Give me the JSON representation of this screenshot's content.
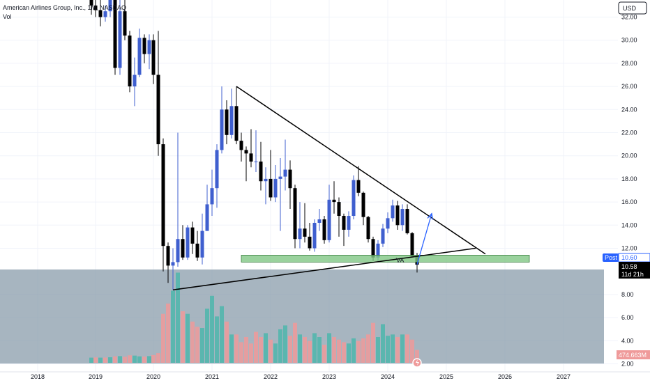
{
  "legend": {
    "symbol_title": "American Airlines Group, Inc., 1M, NASDAQ",
    "volume_label": "Vol"
  },
  "currency_label": "USD",
  "post_label": "Post",
  "post_price": "10.60",
  "last_price": "10.58",
  "countdown": "11d 21h",
  "volume_value": "474.663M",
  "colors": {
    "bull_candle": "#3f5fcf",
    "bear_candle": "#000000",
    "vol_up": "#4db6ac",
    "vol_down": "#ef9a9a",
    "support_zone": "#81c784",
    "volume_panel": "#8a9cab",
    "projection_arrow": "#2962ff"
  },
  "chart_data": {
    "type": "candlestick",
    "interval": "1M",
    "y_axis": {
      "min": 2,
      "max": 33,
      "ticks": [
        "32.00",
        "30.00",
        "28.00",
        "26.00",
        "24.00",
        "22.00",
        "20.00",
        "18.00",
        "16.00",
        "14.00",
        "12.00",
        "8.00",
        "6.00",
        "4.00",
        "2.00"
      ]
    },
    "x_axis": {
      "ticks": [
        "2018",
        "2019",
        "2020",
        "2021",
        "2022",
        "2023",
        "2024",
        "2025",
        "2026",
        "2027"
      ]
    },
    "annotations": {
      "descending_trendline": {
        "from": [
          "2021-06",
          26.0
        ],
        "to": [
          "2025-09",
          11.5
        ]
      },
      "ascending_trendline": {
        "from": [
          "2020-05",
          8.4
        ],
        "to": [
          "2025-07",
          12.0
        ]
      },
      "support_zone": {
        "from": "2021-07",
        "to": "2026-06",
        "low": 10.8,
        "high": 11.4
      },
      "projection_arrow": {
        "from": [
          "2024-07",
          10.6
        ],
        "to": [
          "2024-10",
          15.0
        ]
      },
      "label": "VA"
    },
    "candles": [
      [
        "2018-12",
        35,
        35.5,
        32.2,
        33.0
      ],
      [
        "2019-01",
        33.0,
        34.8,
        32.0,
        32.6
      ],
      [
        "2019-02",
        32.6,
        34.6,
        31.2,
        32.0
      ],
      [
        "2019-03",
        32.0,
        33.0,
        31.6,
        32.5
      ],
      [
        "2019-04",
        32.5,
        34.8,
        32.0,
        34.0
      ],
      [
        "2019-05",
        34.0,
        34.0,
        27.0,
        27.6
      ],
      [
        "2019-06",
        27.6,
        33.5,
        27.0,
        32.5
      ],
      [
        "2019-07",
        32.5,
        33.5,
        30.0,
        30.4
      ],
      [
        "2019-08",
        30.4,
        30.8,
        25.5,
        26.0
      ],
      [
        "2019-09",
        26.0,
        28.5,
        24.3,
        27.0
      ],
      [
        "2019-10",
        27.0,
        31.0,
        26.8,
        30.2
      ],
      [
        "2019-11",
        30.2,
        30.5,
        28.0,
        28.8
      ],
      [
        "2019-12",
        28.8,
        30.5,
        27.5,
        30.0
      ],
      [
        "2020-01",
        30.0,
        30.5,
        26.2,
        27.0
      ],
      [
        "2020-02",
        27.0,
        30.8,
        20.0,
        21.0
      ],
      [
        "2020-03",
        21.0,
        21.5,
        10.0,
        12.2
      ],
      [
        "2020-04",
        12.2,
        12.5,
        9.0,
        10.5
      ],
      [
        "2020-05",
        10.5,
        12.0,
        8.4,
        10.8
      ],
      [
        "2020-06",
        10.8,
        22.0,
        10.4,
        12.8
      ],
      [
        "2020-07",
        12.8,
        14.0,
        11.0,
        11.2
      ],
      [
        "2020-08",
        11.2,
        14.0,
        11.0,
        13.8
      ],
      [
        "2020-09",
        13.8,
        14.3,
        11.5,
        12.4
      ],
      [
        "2020-10",
        12.4,
        13.5,
        10.9,
        11.2
      ],
      [
        "2020-11",
        11.2,
        15.0,
        10.6,
        13.5
      ],
      [
        "2020-12",
        13.5,
        17.5,
        13.5,
        15.8
      ],
      [
        "2021-01",
        15.8,
        18.8,
        14.8,
        17.2
      ],
      [
        "2021-02",
        17.2,
        21.0,
        15.5,
        20.5
      ],
      [
        "2021-03",
        20.5,
        26.0,
        20.2,
        24.0
      ],
      [
        "2021-04",
        24.0,
        24.8,
        21.0,
        21.8
      ],
      [
        "2021-05",
        21.8,
        25.8,
        21.5,
        24.3
      ],
      [
        "2021-06",
        24.3,
        26.0,
        21.0,
        21.3
      ],
      [
        "2021-07",
        21.3,
        22.0,
        19.5,
        20.5
      ],
      [
        "2021-08",
        20.5,
        20.8,
        17.8,
        20.2
      ],
      [
        "2021-09",
        20.2,
        22.3,
        19.0,
        19.5
      ],
      [
        "2021-10",
        19.5,
        22.2,
        18.6,
        19.5
      ],
      [
        "2021-11",
        19.5,
        21.2,
        17.0,
        17.8
      ],
      [
        "2021-12",
        17.8,
        19.0,
        15.8,
        18.0
      ],
      [
        "2022-01",
        18.0,
        20.5,
        16.1,
        16.4
      ],
      [
        "2022-02",
        16.4,
        19.2,
        16.0,
        18.0
      ],
      [
        "2022-03",
        18.0,
        19.8,
        13.5,
        18.2
      ],
      [
        "2022-04",
        18.2,
        21.4,
        17.0,
        18.8
      ],
      [
        "2022-05",
        18.8,
        19.6,
        15.4,
        17.2
      ],
      [
        "2022-06",
        17.2,
        17.5,
        12.0,
        12.8
      ],
      [
        "2022-07",
        12.8,
        16.0,
        12.0,
        13.7
      ],
      [
        "2022-08",
        13.7,
        15.9,
        12.5,
        13.0
      ],
      [
        "2022-09",
        13.0,
        14.2,
        11.8,
        12.0
      ],
      [
        "2022-10",
        12.0,
        14.5,
        11.7,
        14.2
      ],
      [
        "2022-11",
        14.2,
        15.4,
        13.5,
        14.5
      ],
      [
        "2022-12",
        14.5,
        14.8,
        12.4,
        12.7
      ],
      [
        "2023-01",
        12.7,
        17.5,
        12.5,
        16.2
      ],
      [
        "2023-02",
        16.2,
        17.8,
        15.0,
        16.0
      ],
      [
        "2023-03",
        16.0,
        16.4,
        13.0,
        14.8
      ],
      [
        "2023-04",
        14.8,
        15.0,
        12.2,
        13.6
      ],
      [
        "2023-05",
        13.6,
        15.2,
        13.0,
        14.8
      ],
      [
        "2023-06",
        14.8,
        18.3,
        14.5,
        17.9
      ],
      [
        "2023-07",
        17.9,
        19.1,
        16.5,
        16.8
      ],
      [
        "2023-08",
        16.8,
        16.9,
        14.0,
        14.7
      ],
      [
        "2023-09",
        14.7,
        14.8,
        12.5,
        12.8
      ],
      [
        "2023-10",
        12.8,
        13.0,
        10.9,
        11.2
      ],
      [
        "2023-11",
        11.2,
        12.7,
        10.9,
        12.4
      ],
      [
        "2023-12",
        12.4,
        14.1,
        12.1,
        13.7
      ],
      [
        "2024-01",
        13.7,
        15.1,
        13.3,
        14.6
      ],
      [
        "2024-02",
        14.6,
        16.2,
        14.3,
        15.7
      ],
      [
        "2024-03",
        15.7,
        16.1,
        13.6,
        14.0
      ],
      [
        "2024-04",
        14.0,
        15.8,
        13.5,
        15.4
      ],
      [
        "2024-05",
        15.4,
        15.8,
        13.2,
        13.3
      ],
      [
        "2024-06",
        13.3,
        13.4,
        11.2,
        11.3
      ],
      [
        "2024-07",
        11.3,
        11.6,
        9.9,
        10.58
      ]
    ],
    "volume": [
      [
        4.0,
        "up"
      ],
      [
        4.2,
        "down"
      ],
      [
        4.0,
        "up"
      ],
      [
        4.1,
        "down"
      ],
      [
        4.3,
        "up"
      ],
      [
        5.0,
        "down"
      ],
      [
        5.2,
        "up"
      ],
      [
        4.7,
        "down"
      ],
      [
        5.8,
        "down"
      ],
      [
        5.6,
        "up"
      ],
      [
        5.0,
        "up"
      ],
      [
        4.8,
        "down"
      ],
      [
        5.2,
        "up"
      ],
      [
        6.0,
        "down"
      ],
      [
        7.5,
        "down"
      ],
      [
        38.0,
        "down"
      ],
      [
        46.0,
        "down"
      ],
      [
        56.0,
        "up"
      ],
      [
        70.0,
        "up"
      ],
      [
        40.0,
        "down"
      ],
      [
        38.0,
        "up"
      ],
      [
        32.0,
        "down"
      ],
      [
        28.0,
        "down"
      ],
      [
        27.0,
        "up"
      ],
      [
        42.0,
        "up"
      ],
      [
        52.0,
        "up"
      ],
      [
        36.0,
        "up"
      ],
      [
        44.0,
        "up"
      ],
      [
        32.0,
        "down"
      ],
      [
        22.0,
        "up"
      ],
      [
        22.0,
        "down"
      ],
      [
        16.0,
        "down"
      ],
      [
        20.0,
        "down"
      ],
      [
        15.0,
        "down"
      ],
      [
        24.0,
        "down"
      ],
      [
        20.0,
        "down"
      ],
      [
        23.0,
        "up"
      ],
      [
        18.0,
        "down"
      ],
      [
        15.0,
        "up"
      ],
      [
        26.0,
        "up"
      ],
      [
        29.0,
        "up"
      ],
      [
        21.0,
        "down"
      ],
      [
        31.0,
        "down"
      ],
      [
        22.0,
        "up"
      ],
      [
        20.0,
        "down"
      ],
      [
        17.0,
        "down"
      ],
      [
        23.0,
        "up"
      ],
      [
        20.0,
        "up"
      ],
      [
        14.0,
        "down"
      ],
      [
        23.0,
        "up"
      ],
      [
        20.0,
        "down"
      ],
      [
        18.0,
        "down"
      ],
      [
        16.0,
        "down"
      ],
      [
        15.0,
        "up"
      ],
      [
        19.0,
        "up"
      ],
      [
        17.0,
        "down"
      ],
      [
        19.0,
        "down"
      ],
      [
        22.0,
        "down"
      ],
      [
        31.0,
        "down"
      ],
      [
        20.0,
        "up"
      ],
      [
        30.0,
        "up"
      ],
      [
        21.0,
        "up"
      ],
      [
        22.0,
        "up"
      ],
      [
        20.0,
        "down"
      ],
      [
        22.0,
        "up"
      ],
      [
        22.0,
        "down"
      ],
      [
        18.0,
        "down"
      ],
      [
        10.0,
        "down"
      ]
    ]
  }
}
